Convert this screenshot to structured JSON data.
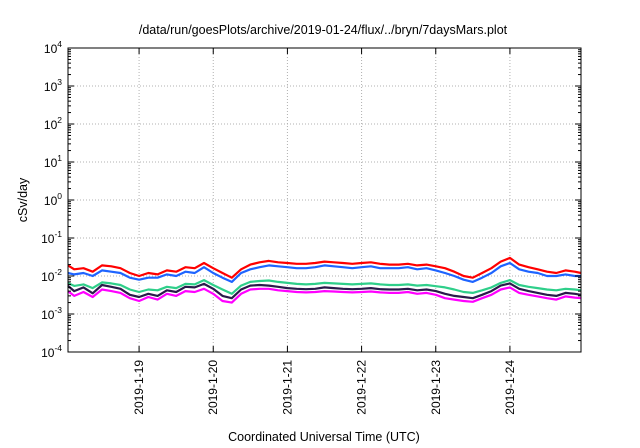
{
  "chart_data": {
    "type": "line",
    "title": "/data/run/goesPlots/archive/2019-01-24/flux/../bryn/7daysMars.plot",
    "xlabel": "Coordinated Universal Time (UTC)",
    "ylabel": "cSv/day",
    "yscale": "log",
    "ylim": [
      0.0001,
      10000
    ],
    "xlim_days": [
      "2019-01-18 01:00",
      "2019-01-24 23:00"
    ],
    "grid": true,
    "legend": "none",
    "x_ticks": [
      "2019-1-19",
      "2019-1-20",
      "2019-1-21",
      "2019-1-22",
      "2019-1-23",
      "2019-1-24"
    ],
    "y_ticks": [
      {
        "base": "10",
        "exp": "-4"
      },
      {
        "base": "10",
        "exp": "-3"
      },
      {
        "base": "10",
        "exp": "-2"
      },
      {
        "base": "10",
        "exp": "-1"
      },
      {
        "base": "10",
        "exp": "0"
      },
      {
        "base": "10",
        "exp": "1"
      },
      {
        "base": "10",
        "exp": "2"
      },
      {
        "base": "10",
        "exp": "3"
      },
      {
        "base": "10",
        "exp": "4"
      }
    ],
    "x": [
      "2019-01-18 01:00",
      "2019-01-18 03:00",
      "2019-01-18 06:00",
      "2019-01-18 09:00",
      "2019-01-18 12:00",
      "2019-01-18 15:00",
      "2019-01-18 18:00",
      "2019-01-18 21:00",
      "2019-01-19 00:00",
      "2019-01-19 03:00",
      "2019-01-19 06:00",
      "2019-01-19 09:00",
      "2019-01-19 12:00",
      "2019-01-19 15:00",
      "2019-01-19 18:00",
      "2019-01-19 21:00",
      "2019-01-20 00:00",
      "2019-01-20 03:00",
      "2019-01-20 06:00",
      "2019-01-20 09:00",
      "2019-01-20 12:00",
      "2019-01-20 15:00",
      "2019-01-20 18:00",
      "2019-01-20 21:00",
      "2019-01-21 00:00",
      "2019-01-21 03:00",
      "2019-01-21 06:00",
      "2019-01-21 09:00",
      "2019-01-21 12:00",
      "2019-01-21 15:00",
      "2019-01-21 18:00",
      "2019-01-21 21:00",
      "2019-01-22 00:00",
      "2019-01-22 03:00",
      "2019-01-22 06:00",
      "2019-01-22 09:00",
      "2019-01-22 12:00",
      "2019-01-22 15:00",
      "2019-01-22 18:00",
      "2019-01-22 21:00",
      "2019-01-23 00:00",
      "2019-01-23 03:00",
      "2019-01-23 06:00",
      "2019-01-23 09:00",
      "2019-01-23 12:00",
      "2019-01-23 15:00",
      "2019-01-23 18:00",
      "2019-01-23 21:00",
      "2019-01-24 00:00",
      "2019-01-24 03:00",
      "2019-01-24 06:00",
      "2019-01-24 09:00",
      "2019-01-24 12:00",
      "2019-01-24 15:00",
      "2019-01-24 18:00",
      "2019-01-24 21:00",
      "2019-01-24 23:00"
    ],
    "series": [
      {
        "color": "#ff0000",
        "values": [
          0.019,
          0.015,
          0.016,
          0.013,
          0.019,
          0.018,
          0.016,
          0.012,
          0.01,
          0.012,
          0.011,
          0.014,
          0.013,
          0.017,
          0.016,
          0.022,
          0.016,
          0.012,
          0.009,
          0.015,
          0.02,
          0.023,
          0.025,
          0.023,
          0.022,
          0.021,
          0.021,
          0.022,
          0.024,
          0.023,
          0.022,
          0.021,
          0.022,
          0.023,
          0.021,
          0.02,
          0.02,
          0.021,
          0.019,
          0.02,
          0.018,
          0.016,
          0.013,
          0.01,
          0.009,
          0.012,
          0.016,
          0.024,
          0.03,
          0.02,
          0.017,
          0.015,
          0.013,
          0.012,
          0.014,
          0.013,
          0.012
        ]
      },
      {
        "color": "#1e64ff",
        "values": [
          0.012,
          0.011,
          0.012,
          0.01,
          0.014,
          0.013,
          0.012,
          0.009,
          0.008,
          0.009,
          0.009,
          0.011,
          0.01,
          0.013,
          0.012,
          0.017,
          0.012,
          0.009,
          0.007,
          0.012,
          0.015,
          0.017,
          0.019,
          0.018,
          0.017,
          0.016,
          0.016,
          0.017,
          0.019,
          0.018,
          0.017,
          0.016,
          0.017,
          0.018,
          0.016,
          0.016,
          0.016,
          0.017,
          0.015,
          0.016,
          0.014,
          0.012,
          0.01,
          0.008,
          0.007,
          0.009,
          0.012,
          0.018,
          0.022,
          0.015,
          0.013,
          0.012,
          0.01,
          0.01,
          0.011,
          0.01,
          0.01
        ]
      },
      {
        "color": "#2fcf8a",
        "values": [
          0.0065,
          0.0055,
          0.006,
          0.0048,
          0.0068,
          0.0064,
          0.0058,
          0.0044,
          0.0038,
          0.0044,
          0.0042,
          0.0052,
          0.0048,
          0.0062,
          0.006,
          0.0078,
          0.0058,
          0.0044,
          0.0034,
          0.0056,
          0.007,
          0.0074,
          0.0076,
          0.007,
          0.0066,
          0.0062,
          0.006,
          0.0062,
          0.0066,
          0.0064,
          0.0062,
          0.006,
          0.0062,
          0.0064,
          0.006,
          0.0058,
          0.0058,
          0.006,
          0.0056,
          0.0058,
          0.0054,
          0.005,
          0.0044,
          0.0038,
          0.0036,
          0.0042,
          0.005,
          0.0066,
          0.0078,
          0.0058,
          0.0052,
          0.0048,
          0.0044,
          0.0042,
          0.0046,
          0.0044,
          0.0042
        ]
      },
      {
        "color": "#2a1a4a",
        "values": [
          0.0055,
          0.004,
          0.005,
          0.0035,
          0.0058,
          0.0052,
          0.0046,
          0.0032,
          0.0028,
          0.0034,
          0.003,
          0.0042,
          0.0038,
          0.0052,
          0.005,
          0.0062,
          0.0046,
          0.003,
          0.0026,
          0.0044,
          0.0056,
          0.0058,
          0.0056,
          0.0052,
          0.0048,
          0.0046,
          0.0045,
          0.0046,
          0.005,
          0.0048,
          0.0046,
          0.0045,
          0.0046,
          0.0048,
          0.0045,
          0.0044,
          0.0044,
          0.0046,
          0.0042,
          0.0044,
          0.004,
          0.0034,
          0.003,
          0.0028,
          0.0026,
          0.0032,
          0.004,
          0.0056,
          0.0064,
          0.0046,
          0.004,
          0.0036,
          0.0032,
          0.003,
          0.0036,
          0.0034,
          0.0032
        ]
      },
      {
        "color": "#ff00ff",
        "values": [
          0.004,
          0.003,
          0.0038,
          0.0028,
          0.0044,
          0.004,
          0.0036,
          0.0026,
          0.0022,
          0.0028,
          0.0024,
          0.0034,
          0.003,
          0.004,
          0.0038,
          0.0046,
          0.0034,
          0.0022,
          0.002,
          0.0034,
          0.0044,
          0.0046,
          0.0046,
          0.0042,
          0.004,
          0.0038,
          0.0037,
          0.0038,
          0.004,
          0.0039,
          0.0038,
          0.0037,
          0.0038,
          0.0039,
          0.0037,
          0.0036,
          0.0036,
          0.0038,
          0.0034,
          0.0036,
          0.0032,
          0.0026,
          0.0024,
          0.0022,
          0.0021,
          0.0026,
          0.0032,
          0.0044,
          0.005,
          0.0036,
          0.0032,
          0.0029,
          0.0026,
          0.0024,
          0.0029,
          0.0027,
          0.0026
        ]
      }
    ]
  }
}
